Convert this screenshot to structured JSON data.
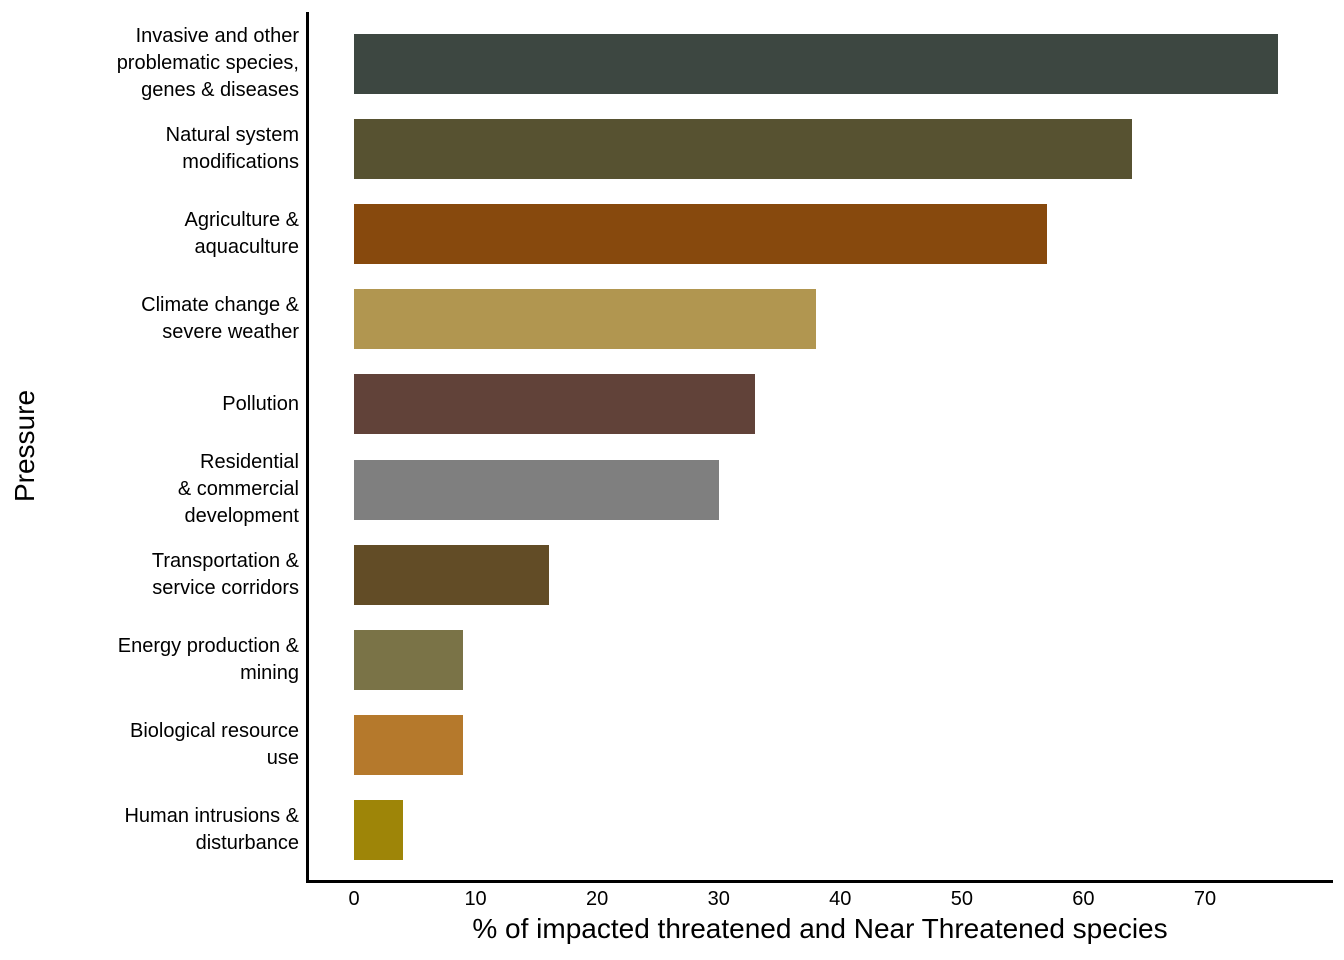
{
  "figure": {
    "background": "#FFFFFF",
    "text_color": "#000000",
    "axis_color": "#000000"
  },
  "chart_data": {
    "type": "bar",
    "orientation": "horizontal",
    "title": "",
    "xlabel": "% of impacted threatened and Near Threatened species",
    "ylabel": "Pressure",
    "categories": [
      "Invasive and other problematic species, genes & diseases",
      "Natural system modifications",
      "Agriculture & aquaculture",
      "Climate change & severe weather",
      "Pollution",
      "Residential & commercial development",
      "Transportation & service corridors",
      "Energy production & mining",
      "Biological resource use",
      "Human intrusions & disturbance"
    ],
    "category_lines": [
      [
        "Invasive and other",
        "problematic species,",
        "genes & diseases"
      ],
      [
        "Natural system",
        "modifications"
      ],
      [
        "Agriculture &",
        "aquaculture"
      ],
      [
        "Climate change &",
        "severe weather"
      ],
      [
        "Pollution"
      ],
      [
        "Residential",
        "& commercial",
        "development"
      ],
      [
        "Transportation &",
        "service corridors"
      ],
      [
        "Energy production &",
        "mining"
      ],
      [
        "Biological resource",
        "use"
      ],
      [
        "Human intrusions &",
        "disturbance"
      ]
    ],
    "values": [
      76,
      64,
      57,
      38,
      33,
      30,
      16,
      9,
      9,
      4
    ],
    "colors": [
      "#3D4741",
      "#575231",
      "#87490D",
      "#B19650",
      "#614239",
      "#7F7F7F",
      "#624C26",
      "#7A7347",
      "#B5792C",
      "#9E8508"
    ],
    "x_ticks": [
      0,
      10,
      20,
      30,
      40,
      50,
      60,
      70
    ],
    "x_tick_labels": [
      "0",
      "10",
      "20",
      "30",
      "40",
      "50",
      "60",
      "70"
    ],
    "xlim": [
      0,
      80
    ],
    "grid": false,
    "legend": "none"
  }
}
